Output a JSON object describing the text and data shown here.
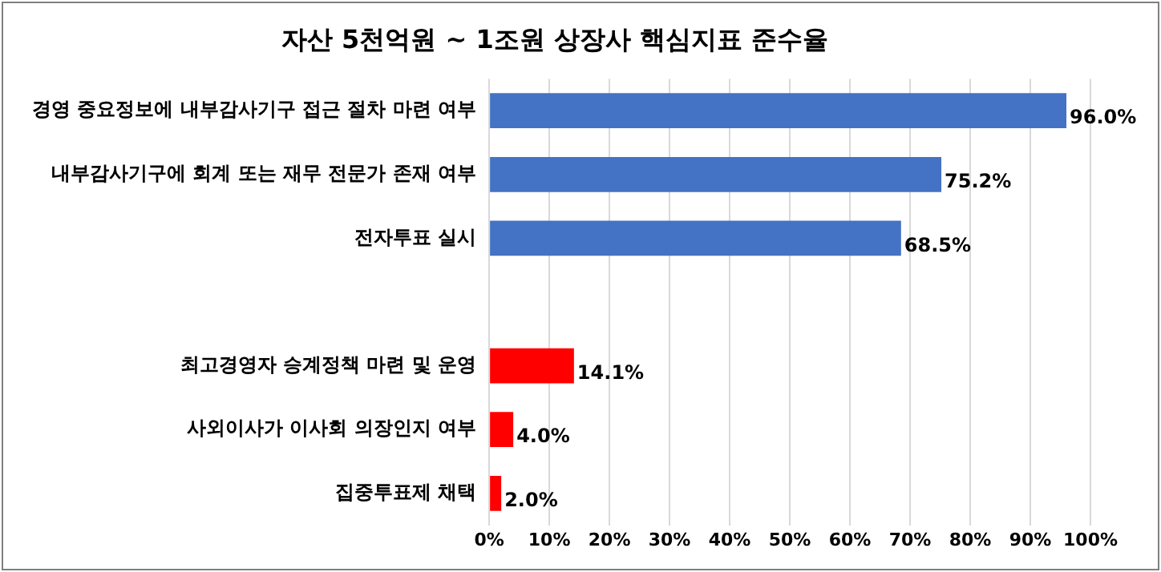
{
  "chart_data": {
    "type": "bar",
    "orientation": "horizontal",
    "title": "자산 5천억원 ~ 1조원 상장사 핵심지표 준수율",
    "categories": [
      "경영 중요정보에 내부감사기구 접근 절차 마련 여부",
      "내부감사기구에 회계 또는 재무 전문가 존재 여부",
      "전자투표 실시",
      null,
      "최고경영자 승계정책 마련 및 운영",
      "사외이사가 이사회 의장인지 여부",
      "집중투표제 채택"
    ],
    "values": [
      96.0,
      75.2,
      68.5,
      null,
      14.1,
      4.0,
      2.0
    ],
    "colors": [
      "#4472c4",
      "#4472c4",
      "#4472c4",
      "#4472c4",
      "#ff0000",
      "#ff0000",
      "#ff0000"
    ],
    "value_labels": [
      "96.0%",
      "75.2%",
      "68.5%",
      null,
      "14.1%",
      "4.0%",
      "2.0%"
    ],
    "xlim": [
      0,
      100
    ],
    "xticks": [
      {
        "value": 0,
        "label": "0%"
      },
      {
        "value": 10,
        "label": "10%"
      },
      {
        "value": 20,
        "label": "20%"
      },
      {
        "value": 30,
        "label": "30%"
      },
      {
        "value": 40,
        "label": "40%"
      },
      {
        "value": 50,
        "label": "50%"
      },
      {
        "value": 60,
        "label": "60%"
      },
      {
        "value": 70,
        "label": "70%"
      },
      {
        "value": 80,
        "label": "80%"
      },
      {
        "value": 90,
        "label": "90%"
      },
      {
        "value": 100,
        "label": "100%"
      }
    ],
    "grid": "x",
    "legend": false
  }
}
